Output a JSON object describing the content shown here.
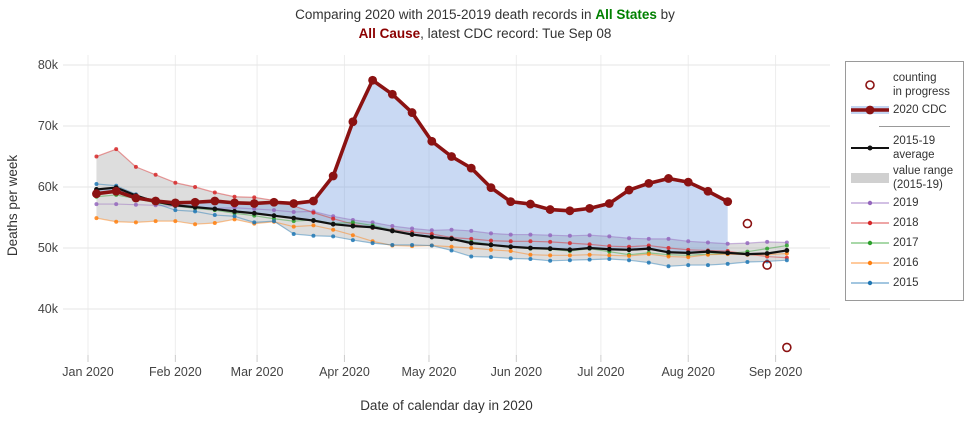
{
  "title": {
    "line1_prefix": "Comparing 2020 with 2015-2019 death records in ",
    "line1_highlight": "All States",
    "line1_suffix": " by",
    "line2_highlight": "All Cause",
    "line2_rest": ", latest CDC record: Tue Sep 08"
  },
  "colors": {
    "title_text": "#333333",
    "state_green": "#008000",
    "cause_red": "#8B0000",
    "grid": "#e5e5e5",
    "vgrid": "#ededed",
    "tick_mark": "#cccccc",
    "tick_text": "#444444",
    "axis_title": "#333333",
    "band_fill": "rgba(150,150,150,0.32)",
    "excess_fill": "rgba(120,160,225,0.40)"
  },
  "legend": {
    "items": [
      {
        "id": "counting",
        "swatch": "open-circle",
        "color": "#8B1212",
        "lines": [
          "counting",
          "in progress"
        ]
      },
      {
        "id": "cdc2020",
        "swatch": "thick-line-band",
        "color": "#8B1212",
        "band": "rgba(120,160,225,0.45)",
        "lines": [
          "2020 CDC"
        ]
      },
      {
        "id": "divider",
        "swatch": "divider",
        "lines": []
      },
      {
        "id": "average",
        "swatch": "avg-line",
        "color": "#111111",
        "lines": [
          "2015-19",
          "average"
        ]
      },
      {
        "id": "range",
        "swatch": "band",
        "color": "rgba(150,150,150,0.45)",
        "lines": [
          "value range",
          "(2015-19)"
        ]
      },
      {
        "id": "y2019",
        "swatch": "year-line",
        "color": "#9467BD",
        "lines": [
          "2019"
        ]
      },
      {
        "id": "y2018",
        "swatch": "year-line",
        "color": "#D62728",
        "lines": [
          "2018"
        ]
      },
      {
        "id": "y2017",
        "swatch": "year-line",
        "color": "#2CA02C",
        "lines": [
          "2017"
        ]
      },
      {
        "id": "y2016",
        "swatch": "year-line",
        "color": "#FF7F0E",
        "lines": [
          "2016"
        ]
      },
      {
        "id": "y2015",
        "swatch": "year-line",
        "color": "#1F77B4",
        "lines": [
          "2015"
        ]
      }
    ]
  },
  "chart_data": {
    "type": "line",
    "title": "Comparing 2020 with 2015-2019 death records in All States by All Cause, latest CDC record: Tue Sep 08",
    "xlabel": "Date of calendar day in 2020",
    "ylabel": "Deaths per week",
    "ylim": [
      32,
      81.5
    ],
    "grid": true,
    "legend_position": "right",
    "units": "thousands of deaths per week",
    "x_month_ticks": [
      {
        "label": "Jan 2020",
        "day": 1
      },
      {
        "label": "Feb 2020",
        "day": 32
      },
      {
        "label": "Mar 2020",
        "day": 61
      },
      {
        "label": "Apr 2020",
        "day": 92
      },
      {
        "label": "May 2020",
        "day": 122
      },
      {
        "label": "Jun 2020",
        "day": 153
      },
      {
        "label": "Jul 2020",
        "day": 183
      },
      {
        "label": "Aug 2020",
        "day": 214
      },
      {
        "label": "Sep 2020",
        "day": 245
      }
    ],
    "y_ticks": [
      {
        "label": "40k",
        "value": 40
      },
      {
        "label": "50k",
        "value": 50
      },
      {
        "label": "60k",
        "value": 60
      },
      {
        "label": "70k",
        "value": 70
      },
      {
        "label": "80k",
        "value": 80
      }
    ],
    "weeks": {
      "start_day": 4,
      "step_days": 7,
      "count": 36,
      "first_week_ending": "Jan 04 2020",
      "last_week_ending": "Sep 05 2020"
    },
    "series_2020": {
      "name": "2020 CDC",
      "color": "#8B1212",
      "values": [
        58.9,
        59.3,
        58.2,
        57.7,
        57.4,
        57.5,
        57.7,
        57.4,
        57.3,
        57.5,
        57.3,
        57.7,
        61.8,
        70.7,
        77.5,
        75.2,
        72.2,
        67.5,
        65.0,
        63.1,
        59.9,
        57.6,
        57.2,
        56.3,
        56.1,
        56.5,
        57.3,
        59.5,
        60.6,
        61.4,
        60.8,
        59.3,
        57.6
      ]
    },
    "counting_in_progress": {
      "name": "counting in progress",
      "color": "#8B1212",
      "start_week_index": 33,
      "values": [
        54.0,
        47.2,
        33.7
      ]
    },
    "average": {
      "name": "2015-19 average",
      "color": "#111111",
      "values": [
        59.6,
        59.9,
        58.6,
        57.6,
        57.0,
        56.7,
        56.4,
        56.0,
        55.7,
        55.3,
        54.9,
        54.5,
        53.9,
        53.6,
        53.4,
        52.8,
        52.2,
        51.8,
        51.5,
        50.8,
        50.5,
        50.2,
        50.0,
        49.9,
        49.7,
        50.0,
        49.8,
        49.7,
        49.9,
        49.3,
        49.2,
        49.4,
        49.2,
        49.0,
        49.1,
        49.6
      ]
    },
    "years": [
      {
        "name": "2019",
        "color": "#9467BD",
        "values": [
          57.2,
          57.2,
          57.1,
          57.0,
          56.8,
          56.6,
          56.5,
          56.6,
          56.4,
          56.2,
          55.9,
          56.0,
          55.2,
          54.6,
          54.2,
          53.6,
          53.2,
          52.9,
          53.0,
          52.8,
          52.4,
          52.2,
          52.2,
          52.1,
          52.0,
          52.1,
          51.9,
          51.6,
          51.5,
          51.5,
          51.1,
          50.9,
          50.7,
          50.8,
          51.0,
          50.9
        ]
      },
      {
        "name": "2018",
        "color": "#D62728",
        "values": [
          65.0,
          66.2,
          63.3,
          62.0,
          60.7,
          60.0,
          59.1,
          58.4,
          58.3,
          57.8,
          56.9,
          55.8,
          54.8,
          53.9,
          53.3,
          53.0,
          52.6,
          52.3,
          51.7,
          51.5,
          51.2,
          51.1,
          51.1,
          51.0,
          50.8,
          50.6,
          50.3,
          50.2,
          50.4,
          50.0,
          49.7,
          49.6,
          49.5,
          49.0,
          48.6,
          48.4
        ]
      },
      {
        "name": "2017",
        "color": "#2CA02C",
        "values": [
          58.4,
          58.7,
          58.1,
          57.4,
          56.9,
          56.5,
          56.2,
          55.7,
          55.3,
          54.8,
          54.4,
          54.6,
          54.0,
          54.2,
          53.7,
          52.9,
          52.3,
          51.8,
          51.5,
          51.0,
          50.6,
          50.2,
          49.9,
          49.8,
          49.5,
          49.9,
          49.4,
          48.9,
          49.2,
          48.9,
          48.8,
          49.0,
          49.1,
          49.4,
          49.9,
          50.4
        ]
      },
      {
        "name": "2016",
        "color": "#FF7F0E",
        "values": [
          54.9,
          54.3,
          54.2,
          54.4,
          54.4,
          53.9,
          54.1,
          54.7,
          54.0,
          54.3,
          53.5,
          53.7,
          53.0,
          52.1,
          51.1,
          50.4,
          50.3,
          50.4,
          50.2,
          50.0,
          49.7,
          49.5,
          48.9,
          48.8,
          48.8,
          48.9,
          48.8,
          48.7,
          49.0,
          48.6,
          48.5,
          48.9,
          49.0,
          48.9,
          48.9,
          49.1
        ]
      },
      {
        "name": "2015",
        "color": "#1F77B4",
        "values": [
          60.5,
          60.2,
          58.8,
          57.3,
          56.2,
          56.0,
          55.4,
          55.2,
          54.2,
          54.4,
          52.3,
          52.0,
          51.9,
          51.3,
          50.8,
          50.5,
          50.5,
          50.4,
          49.6,
          48.6,
          48.5,
          48.3,
          48.2,
          47.9,
          48.0,
          48.1,
          48.2,
          48.0,
          47.6,
          47.0,
          47.2,
          47.2,
          47.4,
          47.7,
          47.8,
          48.0
        ]
      }
    ]
  }
}
